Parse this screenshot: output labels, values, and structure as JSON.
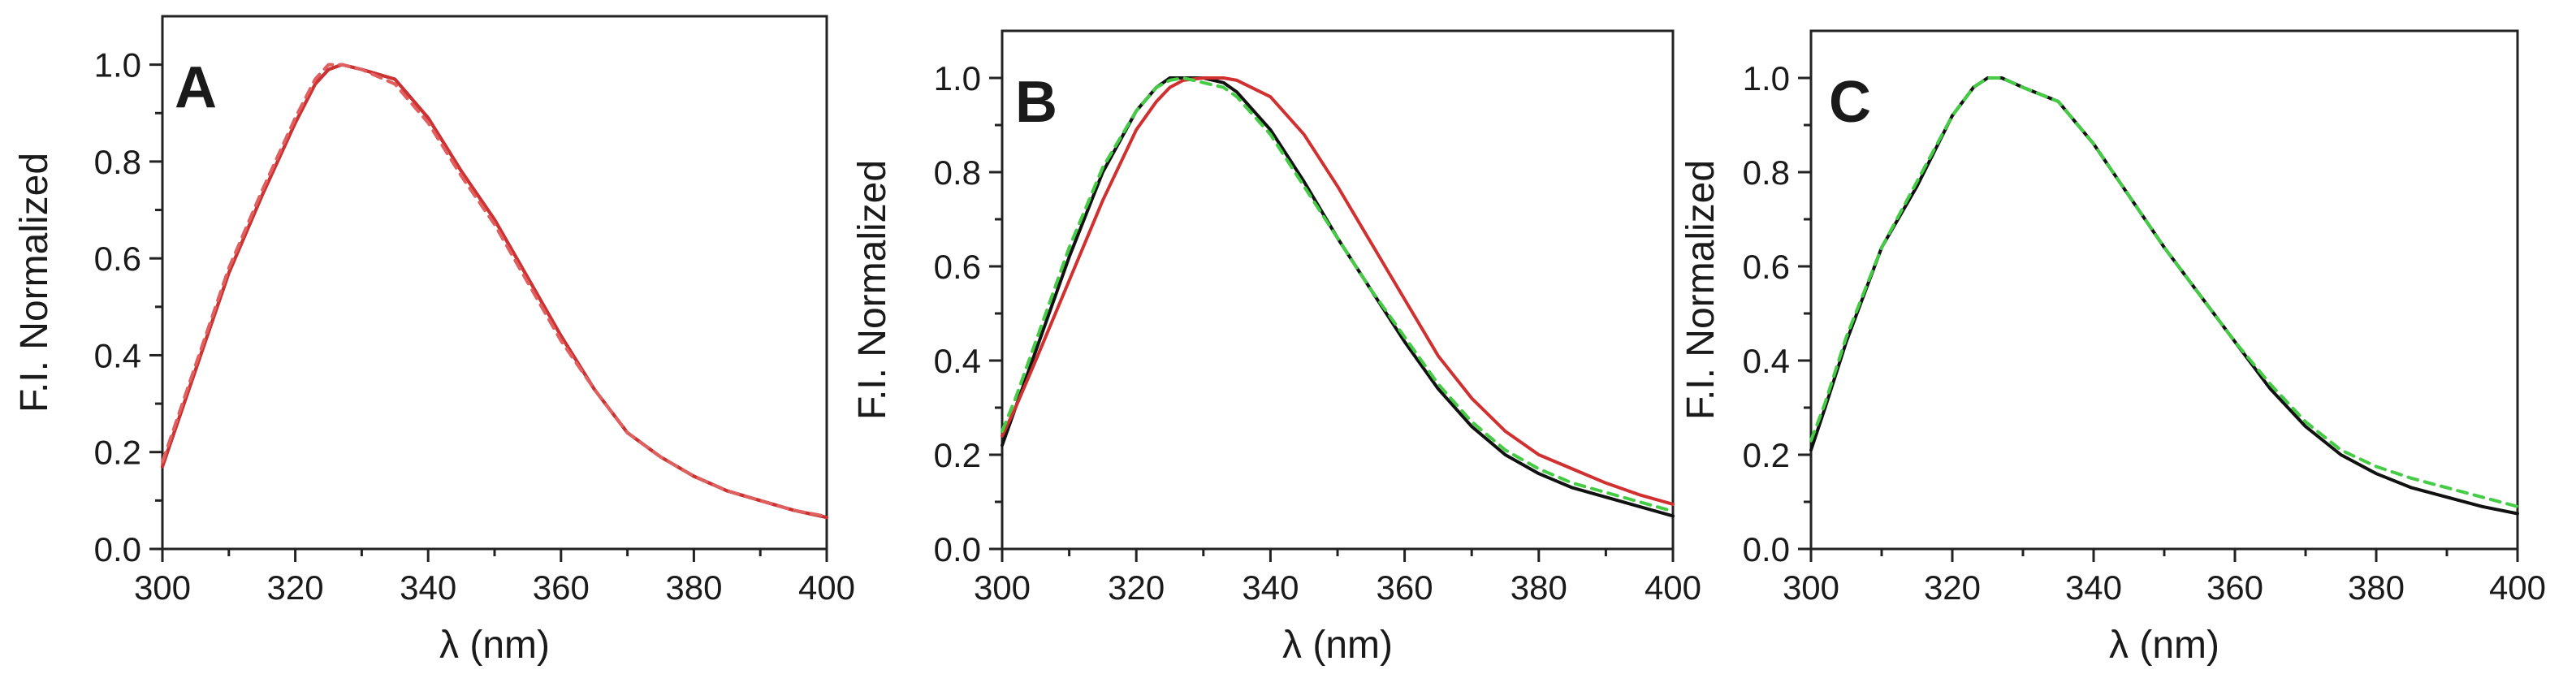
{
  "chart_data": [
    {
      "type": "line",
      "panel_label": "A",
      "xlabel": "λ (nm)",
      "ylabel": "F.I. Normalized",
      "xlim": [
        300,
        400
      ],
      "ylim": [
        0.0,
        1.1
      ],
      "xticks": [
        "300",
        "320",
        "340",
        "360",
        "380",
        "400"
      ],
      "yticks": [
        "0.0",
        "0.2",
        "0.4",
        "0.6",
        "0.8",
        "1.0"
      ],
      "x": [
        300,
        302,
        305,
        310,
        315,
        320,
        323,
        325,
        327,
        330,
        335,
        340,
        345,
        350,
        355,
        360,
        365,
        370,
        375,
        380,
        385,
        390,
        395,
        400
      ],
      "series": [
        {
          "name": "black",
          "color": "#111111",
          "style": "solid",
          "values": [
            0.17,
            0.25,
            0.37,
            0.57,
            0.73,
            0.88,
            0.96,
            0.99,
            1.0,
            0.99,
            0.97,
            0.89,
            0.78,
            0.68,
            0.56,
            0.44,
            0.33,
            0.24,
            0.19,
            0.15,
            0.12,
            0.1,
            0.08,
            0.065
          ]
        },
        {
          "name": "red",
          "color": "#d03030",
          "style": "solid",
          "values": [
            0.17,
            0.25,
            0.37,
            0.57,
            0.73,
            0.88,
            0.96,
            0.99,
            1.0,
            0.99,
            0.97,
            0.89,
            0.78,
            0.68,
            0.56,
            0.44,
            0.33,
            0.24,
            0.19,
            0.15,
            0.12,
            0.1,
            0.08,
            0.065
          ]
        },
        {
          "name": "red-dashed",
          "color": "#e06060",
          "style": "dashed",
          "values": [
            0.18,
            0.26,
            0.38,
            0.58,
            0.74,
            0.89,
            0.97,
            1.0,
            1.0,
            0.99,
            0.96,
            0.88,
            0.77,
            0.67,
            0.55,
            0.43,
            0.33,
            0.24,
            0.19,
            0.15,
            0.12,
            0.1,
            0.08,
            0.067
          ]
        }
      ]
    },
    {
      "type": "line",
      "panel_label": "B",
      "xlabel": "λ (nm)",
      "ylabel": "F.I. Normalized",
      "xlim": [
        300,
        400
      ],
      "ylim": [
        0.0,
        1.1
      ],
      "xticks": [
        "300",
        "320",
        "340",
        "360",
        "380",
        "400"
      ],
      "yticks": [
        "0.0",
        "0.2",
        "0.4",
        "0.6",
        "0.8",
        "1.0"
      ],
      "x": [
        300,
        302,
        305,
        310,
        315,
        320,
        323,
        325,
        327,
        330,
        333,
        335,
        340,
        345,
        350,
        355,
        360,
        365,
        370,
        375,
        380,
        385,
        390,
        395,
        400
      ],
      "series": [
        {
          "name": "black",
          "color": "#111111",
          "style": "solid",
          "values": [
            0.22,
            0.3,
            0.42,
            0.62,
            0.8,
            0.93,
            0.98,
            1.0,
            1.0,
            1.0,
            0.99,
            0.97,
            0.89,
            0.78,
            0.66,
            0.55,
            0.44,
            0.34,
            0.26,
            0.2,
            0.16,
            0.13,
            0.11,
            0.09,
            0.07
          ]
        },
        {
          "name": "red",
          "color": "#d03030",
          "style": "solid",
          "values": [
            0.24,
            0.3,
            0.4,
            0.57,
            0.74,
            0.89,
            0.95,
            0.98,
            0.995,
            1.0,
            1.0,
            0.995,
            0.96,
            0.88,
            0.77,
            0.65,
            0.53,
            0.41,
            0.32,
            0.25,
            0.2,
            0.17,
            0.14,
            0.115,
            0.095
          ]
        },
        {
          "name": "green-dashed",
          "color": "#44cc44",
          "style": "dashed",
          "values": [
            0.25,
            0.32,
            0.44,
            0.64,
            0.81,
            0.93,
            0.98,
            0.995,
            1.0,
            0.99,
            0.98,
            0.96,
            0.88,
            0.77,
            0.66,
            0.55,
            0.45,
            0.35,
            0.27,
            0.21,
            0.17,
            0.14,
            0.12,
            0.1,
            0.08
          ]
        }
      ]
    },
    {
      "type": "line",
      "panel_label": "C",
      "xlabel": "λ (nm)",
      "ylabel": "F.I. Normalized",
      "xlim": [
        300,
        400
      ],
      "ylim": [
        0.0,
        1.1
      ],
      "xticks": [
        "300",
        "320",
        "340",
        "360",
        "380",
        "400"
      ],
      "yticks": [
        "0.0",
        "0.2",
        "0.4",
        "0.6",
        "0.8",
        "1.0"
      ],
      "x": [
        300,
        302,
        305,
        310,
        315,
        320,
        323,
        325,
        327,
        330,
        335,
        340,
        345,
        350,
        355,
        360,
        365,
        370,
        375,
        380,
        385,
        390,
        395,
        400
      ],
      "series": [
        {
          "name": "black",
          "color": "#111111",
          "style": "solid",
          "values": [
            0.21,
            0.3,
            0.44,
            0.64,
            0.77,
            0.92,
            0.98,
            1.0,
            1.0,
            0.98,
            0.95,
            0.86,
            0.75,
            0.64,
            0.54,
            0.44,
            0.34,
            0.26,
            0.2,
            0.16,
            0.13,
            0.11,
            0.09,
            0.075
          ]
        },
        {
          "name": "green-dashed",
          "color": "#44cc44",
          "style": "dashed",
          "values": [
            0.23,
            0.31,
            0.45,
            0.64,
            0.78,
            0.92,
            0.98,
            1.0,
            1.0,
            0.98,
            0.95,
            0.86,
            0.75,
            0.64,
            0.54,
            0.44,
            0.35,
            0.27,
            0.21,
            0.175,
            0.15,
            0.13,
            0.11,
            0.09
          ]
        }
      ]
    }
  ]
}
